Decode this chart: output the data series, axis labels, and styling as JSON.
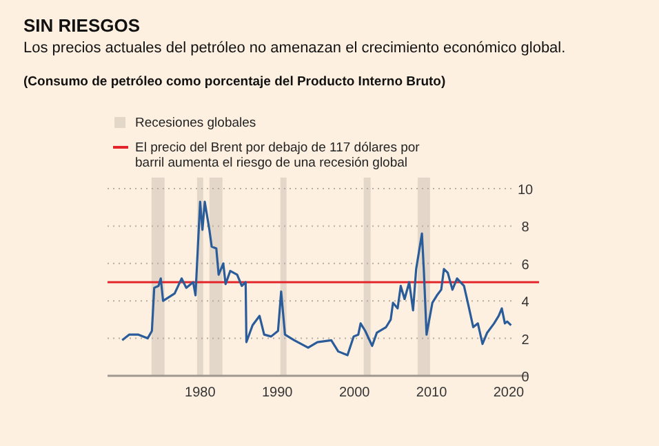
{
  "chart_data": {
    "type": "line",
    "title": "SIN RIESGOS",
    "subtitle": "Los precios actuales del petróleo no amenazan el crecimiento económico global.",
    "annotations": [
      "(Consumo de petróleo como porcentaje del Producto Interno Bruto)"
    ],
    "x": [
      1969.9,
      1970.8,
      1972,
      1973.2,
      1973.75,
      1974.05,
      1974.6,
      1974.9,
      1975.2,
      1976.7,
      1977.6,
      1978.2,
      1979.1,
      1979.4,
      1979.7,
      1980,
      1980.3,
      1980.6,
      1981.2,
      1981.5,
      1982.1,
      1982.4,
      1983,
      1983.3,
      1983.9,
      1984.8,
      1985.4,
      1985.9,
      1986,
      1986.8,
      1987.7,
      1988.3,
      1989.2,
      1990.1,
      1990.5,
      1991,
      1992.2,
      1994,
      1995.2,
      1997,
      1997.9,
      1999.1,
      1999.9,
      2000.5,
      2000.8,
      2001.4,
      2002.3,
      2002.9,
      2004.1,
      2004.7,
      2005,
      2005.6,
      2006,
      2006.5,
      2007.1,
      2007.6,
      2008,
      2008.75,
      2009,
      2009.35,
      2010.1,
      2010.7,
      2011.25,
      2011.6,
      2012.1,
      2012.7,
      2013.3,
      2014.2,
      2014.7,
      2015.4,
      2016,
      2016.6,
      2017.2,
      2018.1,
      2018.7,
      2019.1,
      2019.5,
      2019.8,
      2020.3
    ],
    "series": [
      {
        "color": "#2a5c9a",
        "values": [
          1.9,
          2.2,
          2.2,
          2.0,
          2.4,
          4.7,
          4.8,
          5.2,
          4.0,
          4.4,
          5.2,
          4.7,
          5.0,
          4.3,
          6.8,
          9.3,
          7.8,
          9.3,
          7.8,
          6.9,
          6.8,
          5.4,
          6.0,
          4.9,
          5.6,
          5.4,
          4.8,
          5.0,
          1.8,
          2.7,
          3.2,
          2.2,
          2.1,
          2.4,
          4.5,
          2.2,
          1.9,
          1.5,
          1.8,
          1.9,
          1.3,
          1.1,
          2.1,
          2.2,
          2.8,
          2.4,
          1.6,
          2.3,
          2.6,
          3.0,
          3.9,
          3.6,
          4.8,
          4.1,
          5.0,
          3.5,
          5.7,
          7.6,
          5.6,
          2.2,
          3.9,
          4.3,
          4.6,
          5.7,
          5.5,
          4.6,
          5.2,
          4.8,
          3.9,
          2.6,
          2.8,
          1.7,
          2.3,
          2.8,
          3.2,
          3.6,
          2.8,
          2.9,
          2.7
        ]
      }
    ],
    "xlim": [
      1968,
      2022.5
    ],
    "xticks": [
      1980,
      1990,
      2000,
      2010,
      2020
    ],
    "ylim": [
      0,
      10
    ],
    "yticks": [
      0,
      2,
      4,
      6,
      8,
      10
    ],
    "grid": "y",
    "legend": "top",
    "bands": [
      {
        "axis": "x",
        "from": 1973.7,
        "to": 1975.4,
        "label": "Recesiones globales",
        "color": "#e3d7c9"
      },
      {
        "axis": "x",
        "from": 1979.6,
        "to": 1980.4,
        "color": "#e3d7c9"
      },
      {
        "axis": "x",
        "from": 1981.2,
        "to": 1982.9,
        "color": "#e3d7c9"
      },
      {
        "axis": "x",
        "from": 1990.4,
        "to": 1991.2,
        "color": "#e3d7c9"
      },
      {
        "axis": "x",
        "from": 2001.2,
        "to": 2002.1,
        "color": "#e3d7c9"
      },
      {
        "axis": "x",
        "from": 2008.2,
        "to": 2009.8,
        "color": "#e3d7c9"
      }
    ],
    "ref_lines": [
      {
        "axis": "y",
        "value": 5,
        "label": "El precio del Brent por debajo de 117 dólares por barril aumenta el riesgo de una recesión global",
        "color": "#e3242b"
      }
    ]
  }
}
